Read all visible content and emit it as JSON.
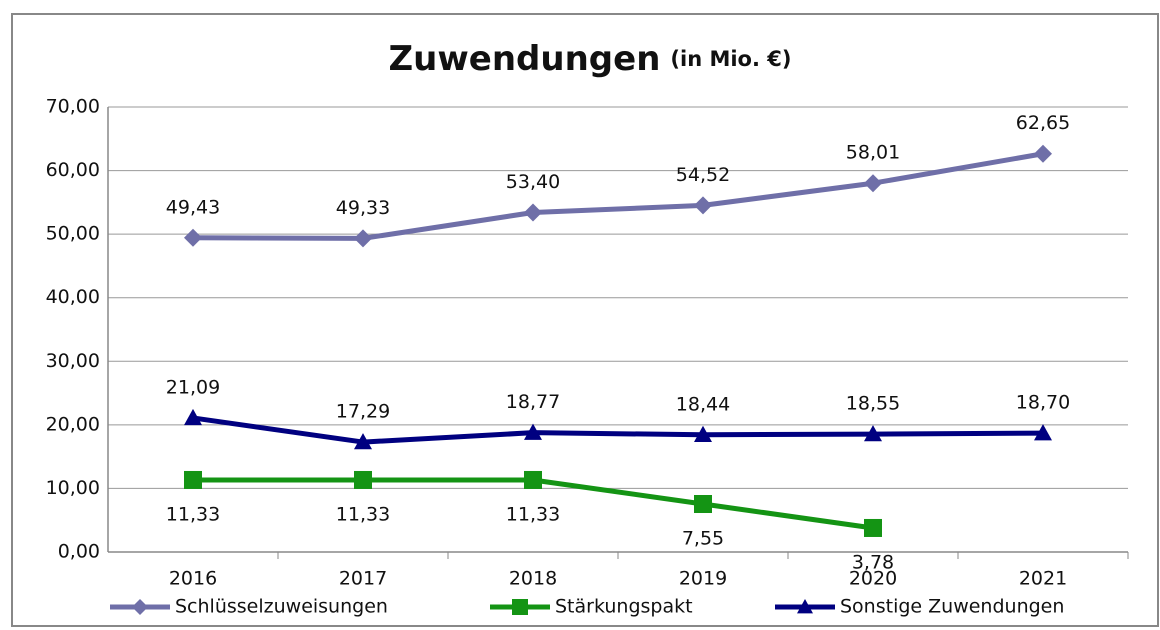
{
  "chart_data": {
    "type": "line",
    "title": "Zuwendungen",
    "subtitle": "(in Mio. €)",
    "categories": [
      "2016",
      "2017",
      "2018",
      "2019",
      "2020",
      "2021"
    ],
    "series": [
      {
        "name": "Schlüsselzuweisungen",
        "color": "#6f6fa8",
        "marker": "diamond",
        "label_position": "above",
        "values": [
          49.43,
          49.33,
          53.4,
          54.52,
          58.01,
          62.65
        ],
        "value_labels": [
          "49,43",
          "49,33",
          "53,40",
          "54,52",
          "58,01",
          "62,65"
        ]
      },
      {
        "name": "Stärkungspakt",
        "color": "#149414",
        "marker": "square",
        "label_position": "below",
        "values": [
          11.33,
          11.33,
          11.33,
          7.55,
          3.78,
          null
        ],
        "value_labels": [
          "11,33",
          "11,33",
          "11,33",
          "7,55",
          "3,78",
          null
        ]
      },
      {
        "name": "Sonstige Zuwendungen",
        "color": "#000080",
        "marker": "triangle",
        "label_position": "above",
        "values": [
          21.09,
          17.29,
          18.77,
          18.44,
          18.55,
          18.7
        ],
        "value_labels": [
          "21,09",
          "17,29",
          "18,77",
          "18,44",
          "18,55",
          "18,70"
        ]
      }
    ],
    "ylim": [
      0,
      70
    ],
    "yticks": [
      {
        "value": 0,
        "label": "0,00"
      },
      {
        "value": 10,
        "label": "10,00"
      },
      {
        "value": 20,
        "label": "20,00"
      },
      {
        "value": 30,
        "label": "30,00"
      },
      {
        "value": 40,
        "label": "40,00"
      },
      {
        "value": 50,
        "label": "50,00"
      },
      {
        "value": 60,
        "label": "60,00"
      },
      {
        "value": 70,
        "label": "70,00"
      }
    ],
    "grid": true,
    "legend": "bottom"
  }
}
